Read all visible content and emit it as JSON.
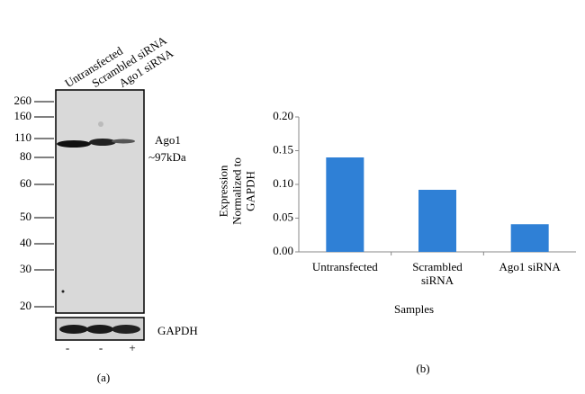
{
  "blot": {
    "lanes": [
      "Untransfected",
      "Scrambled siRNA",
      "Ago1 siRNA"
    ],
    "markers": [
      "260",
      "160",
      "110",
      "80",
      "60",
      "50",
      "40",
      "30",
      "20"
    ],
    "target": "Ago1",
    "target_size": "~97kDa",
    "control": "GAPDH",
    "treatment": [
      "-",
      "-",
      "+"
    ],
    "caption": "(a)"
  },
  "chart_data": {
    "type": "bar",
    "y_label": "Expression Normalized to GAPDH",
    "x_label": "Samples",
    "categories": [
      "Untransfected",
      "Scrambled siRNA",
      "Ago1 siRNA"
    ],
    "values": [
      0.14,
      0.092,
      0.041
    ],
    "color": "#2f80d6",
    "ylim": [
      0,
      0.2
    ],
    "yticks": [
      {
        "value": 0,
        "label": "0.00"
      },
      {
        "value": 0.05,
        "label": "0.05"
      },
      {
        "value": 0.1,
        "label": "0.10"
      },
      {
        "value": 0.15,
        "label": "0.15"
      },
      {
        "value": 0.2,
        "label": "0.20"
      }
    ],
    "caption": "(b)"
  }
}
